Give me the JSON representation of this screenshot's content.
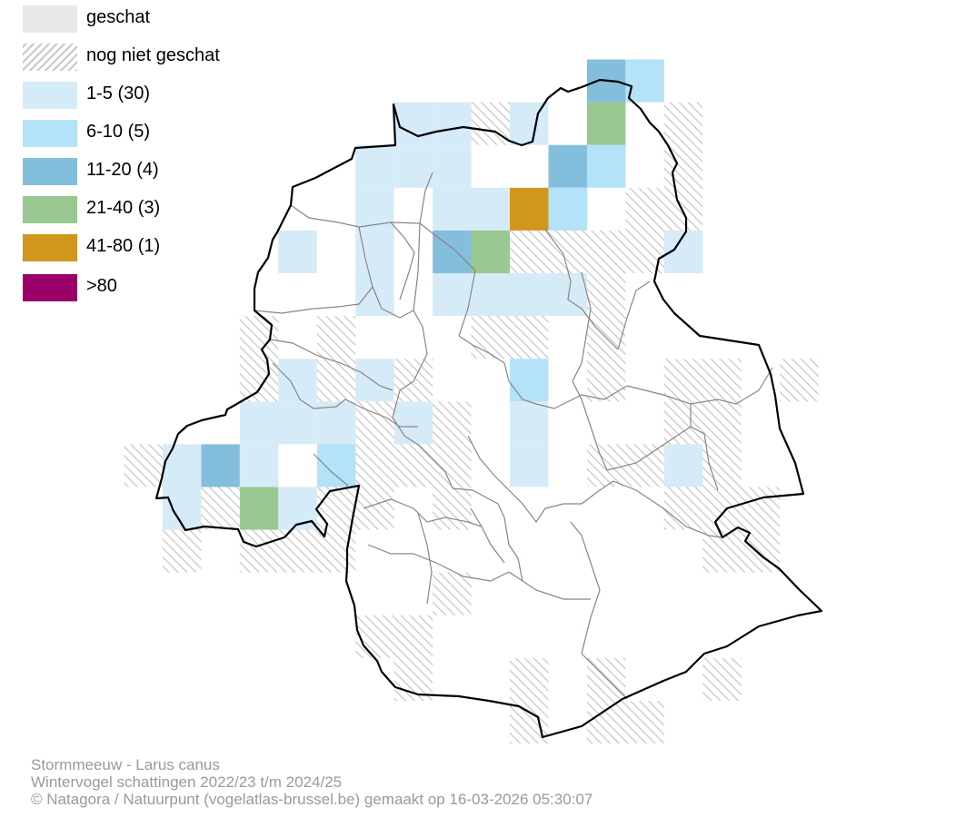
{
  "legend": {
    "items": [
      {
        "label": "geschat",
        "fill": "#e8e8e8",
        "pattern": "solid"
      },
      {
        "label": "nog niet geschat",
        "fill": "#c8c8c8",
        "pattern": "hatch"
      },
      {
        "label": "1-5 (30)",
        "fill": "#d6ebf8",
        "pattern": "solid"
      },
      {
        "label": "6-10 (5)",
        "fill": "#b3e2f9",
        "pattern": "solid"
      },
      {
        "label": "11-20 (4)",
        "fill": "#84bedd",
        "pattern": "solid"
      },
      {
        "label": "21-40 (3)",
        "fill": "#99c990",
        "pattern": "solid"
      },
      {
        "label": "41-80 (1)",
        "fill": "#d0961e",
        "pattern": "solid"
      },
      {
        "label": ">80",
        "fill": "#9b0068",
        "pattern": "solid"
      }
    ]
  },
  "caption": {
    "species": "Stormmeeuw - Larus canus",
    "period": "Wintervogel schattingen 2022/23 t/m 2024/25",
    "credits": "© Natagora / Natuurpunt (vogelatlas-brussel.be) gemaakt op 16-03-2026 05:30:07"
  },
  "map": {
    "description_classes": [
      "1-5",
      "6-10",
      "11-20",
      "21-40",
      "41-80"
    ],
    "colors": {
      "1-5": "#d6ebf8",
      "6-10": "#b3e2f9",
      "11-20": "#84bedd",
      "21-40": "#99c990",
      "41-80": "#d0961e",
      "hatch": "#c8c8c8",
      "boundary": "#000000",
      "municipality": "#8a8580"
    }
  }
}
